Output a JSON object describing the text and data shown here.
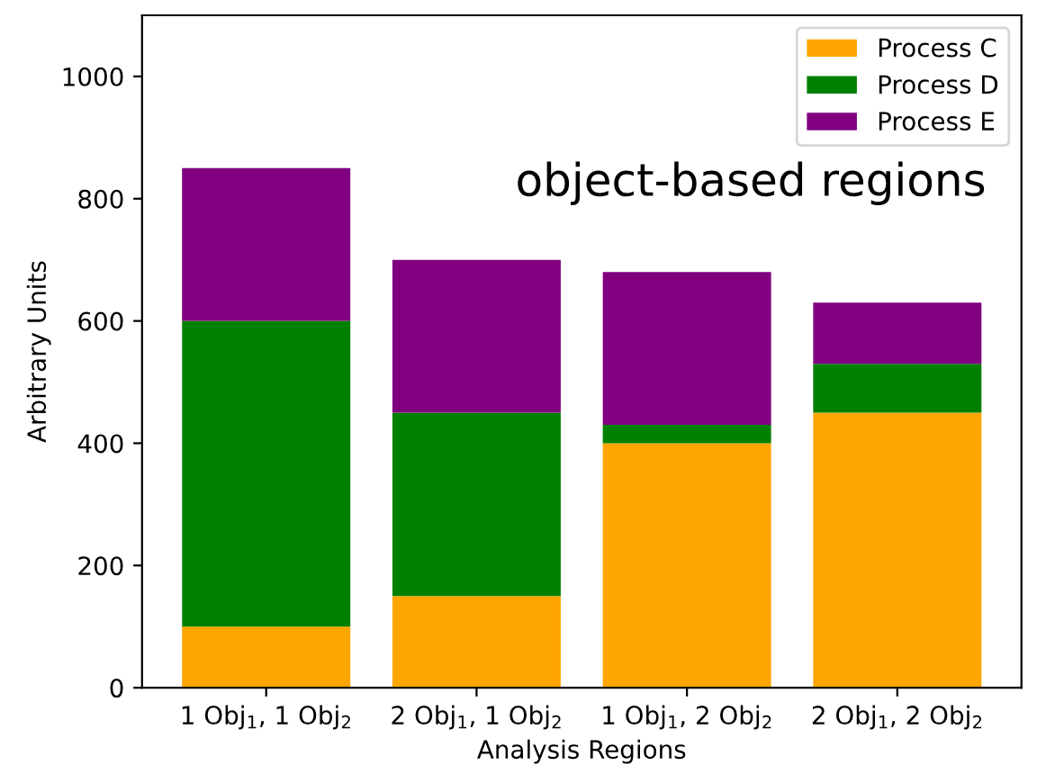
{
  "chart_data": {
    "type": "bar",
    "stacked": true,
    "xlabel": "Analysis Regions",
    "ylabel": "Arbitrary Units",
    "categories": [
      "1 Obj$_{1}$, 1 Obj$_{2}$",
      "2 Obj$_{1}$, 1 Obj$_{2}$",
      "1 Obj$_{1}$, 2 Obj$_{2}$",
      "2 Obj$_{1}$, 2 Obj$_{2}$"
    ],
    "series": [
      {
        "name": "Process C",
        "color": "#ffa500",
        "values": [
          100,
          150,
          400,
          450
        ]
      },
      {
        "name": "Process D",
        "color": "#008000",
        "values": [
          500,
          300,
          30,
          80
        ]
      },
      {
        "name": "Process E",
        "color": "#800080",
        "values": [
          250,
          250,
          250,
          100
        ]
      }
    ],
    "ylim": [
      0,
      1100
    ],
    "yticks": [
      0,
      200,
      400,
      600,
      800,
      1000
    ],
    "legend": "top right",
    "grid": false,
    "annotations": [
      "object-based regions"
    ]
  }
}
